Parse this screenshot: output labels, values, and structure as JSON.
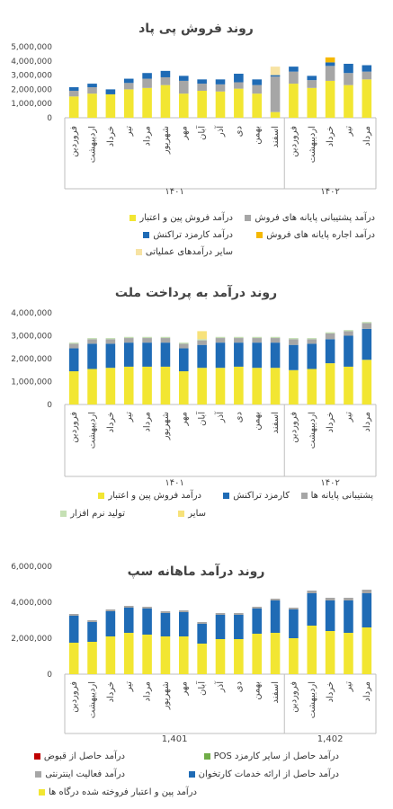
{
  "chart_data": [
    {
      "type": "bar",
      "title": "روند فروش پی پاد",
      "ylim": [
        0,
        5000000
      ],
      "ytick_labels": [
        "5,000,000",
        "4,000,000",
        "3,000,000",
        "2,000,000",
        "1,000,000",
        "0"
      ],
      "categories": [
        "فروردین",
        "اردیبهشت",
        "خرداد",
        "تیر",
        "مرداد",
        "شهریور",
        "مهر",
        "آبان",
        "آذر",
        "دی",
        "بهمن",
        "اسفند",
        "فروردین",
        "اردیبهشت",
        "خرداد",
        "تیر",
        "مرداد"
      ],
      "groups": [
        {
          "label": "۱۴۰۱",
          "count": 12
        },
        {
          "label": "۱۴۰۲",
          "count": 5
        }
      ],
      "series": [
        {
          "name": "درآمد فروش پین و اعتبار",
          "color": "#f2e632",
          "values": [
            1500000,
            1700000,
            1650000,
            2000000,
            2100000,
            2300000,
            1700000,
            1900000,
            1850000,
            2050000,
            1700000,
            400000,
            2400000,
            2100000,
            2600000,
            2300000,
            2700000
          ]
        },
        {
          "name": "درآمد پشتیبانی پایانه های فروش",
          "color": "#a6a6a6",
          "values": [
            400000,
            450000,
            0,
            450000,
            650000,
            550000,
            900000,
            500000,
            500000,
            450000,
            600000,
            2500000,
            850000,
            550000,
            1050000,
            850000,
            550000
          ]
        },
        {
          "name": "درآمد کارمزد تراکنش",
          "color": "#1f6bb5",
          "values": [
            250000,
            250000,
            350000,
            300000,
            400000,
            450000,
            350000,
            300000,
            350000,
            600000,
            400000,
            100000,
            350000,
            300000,
            250000,
            650000,
            450000
          ]
        },
        {
          "name": "درآمد اجاره پایانه های فروش",
          "color": "#f5b800",
          "values": [
            0,
            0,
            0,
            0,
            0,
            0,
            0,
            0,
            0,
            0,
            0,
            0,
            0,
            0,
            350000,
            0,
            0
          ]
        },
        {
          "name": "سایر درآمدهای عملیاتی",
          "color": "#f7e3a3",
          "values": [
            0,
            0,
            0,
            0,
            0,
            0,
            0,
            0,
            0,
            0,
            0,
            600000,
            0,
            0,
            0,
            0,
            0
          ]
        }
      ],
      "legend_position": "bottom"
    },
    {
      "type": "bar",
      "title": "روند درآمد به پرداخت ملت",
      "ylim": [
        0,
        4000000
      ],
      "ytick_labels": [
        "4,000,000",
        "3,000,000",
        "2,000,000",
        "1,000,000",
        "0"
      ],
      "categories": [
        "فروردین",
        "اردیبهشت",
        "خرداد",
        "تیر",
        "مرداد",
        "شهریور",
        "مهر",
        "آبان",
        "آذر",
        "دی",
        "بهمن",
        "اسفند",
        "فروردین",
        "اردیبهشت",
        "خرداد",
        "تیر",
        "مرداد"
      ],
      "groups": [
        {
          "label": "۱۴۰۱",
          "count": 12
        },
        {
          "label": "۱۴۰۲",
          "count": 5
        }
      ],
      "series": [
        {
          "name": "درآمد فروش پین و اعتبار",
          "color": "#f2e632",
          "values": [
            1450000,
            1550000,
            1600000,
            1650000,
            1650000,
            1650000,
            1450000,
            1600000,
            1600000,
            1650000,
            1600000,
            1600000,
            1500000,
            1550000,
            1800000,
            1650000,
            1950000
          ]
        },
        {
          "name": "کارمزد تراکنش",
          "color": "#1f6bb5",
          "values": [
            1000000,
            1100000,
            1050000,
            1050000,
            1050000,
            1050000,
            1000000,
            1000000,
            1100000,
            1050000,
            1100000,
            1100000,
            1100000,
            1100000,
            1050000,
            1350000,
            1350000
          ]
        },
        {
          "name": "پشتیبانی پایانه ها",
          "color": "#a6a6a6",
          "values": [
            200000,
            200000,
            200000,
            200000,
            200000,
            200000,
            200000,
            200000,
            200000,
            200000,
            200000,
            200000,
            250000,
            200000,
            250000,
            200000,
            250000
          ]
        },
        {
          "name": "تولید نرم افزار",
          "color": "#c5e0b4",
          "values": [
            50000,
            50000,
            50000,
            50000,
            50000,
            50000,
            50000,
            50000,
            50000,
            50000,
            50000,
            50000,
            50000,
            50000,
            50000,
            50000,
            50000
          ]
        },
        {
          "name": "سایر",
          "color": "#f7e27a",
          "values": [
            0,
            0,
            0,
            0,
            0,
            0,
            0,
            350000,
            0,
            0,
            0,
            0,
            0,
            0,
            0,
            0,
            0
          ]
        }
      ],
      "legend_position": "bottom"
    },
    {
      "type": "bar",
      "title": "روند درآمد ماهانه سپ",
      "ylim": [
        0,
        6000000
      ],
      "ytick_labels": [
        "6,000,000",
        "4,000,000",
        "2,000,000",
        "0"
      ],
      "categories": [
        "فروردین",
        "اردیبهشت",
        "خرداد",
        "تیر",
        "مرداد",
        "شهریور",
        "مهر",
        "آبان",
        "آذر",
        "دی",
        "بهمن",
        "اسفند",
        "فروردین",
        "اردیبهشت",
        "خرداد",
        "تیر",
        "مرداد"
      ],
      "groups": [
        {
          "label": "1,401",
          "count": 12
        },
        {
          "label": "1,402",
          "count": 5
        }
      ],
      "series": [
        {
          "name": "درآمد حاصل از قبوض",
          "color": "#c00000",
          "values": [
            0,
            0,
            0,
            0,
            0,
            0,
            0,
            0,
            0,
            0,
            0,
            0,
            0,
            0,
            0,
            0,
            0
          ]
        },
        {
          "name": "درآمد حاصل از سایر کارمزد POS",
          "color": "#70ad47",
          "values": [
            0,
            0,
            0,
            0,
            0,
            0,
            0,
            0,
            0,
            0,
            0,
            0,
            0,
            0,
            0,
            0,
            0
          ]
        },
        {
          "name": "درآمد فعالیت اینترنتی",
          "color": "#a6a6a6",
          "values": [
            100000,
            100000,
            100000,
            100000,
            100000,
            100000,
            100000,
            100000,
            100000,
            100000,
            100000,
            100000,
            100000,
            150000,
            150000,
            150000,
            200000
          ]
        },
        {
          "name": "درآمد حاصل از ارائه خدمات کارتخوان",
          "color": "#1f6bb5",
          "values": [
            1500000,
            1100000,
            1400000,
            1400000,
            1450000,
            1300000,
            1350000,
            1100000,
            1350000,
            1350000,
            1400000,
            1800000,
            1600000,
            1800000,
            1700000,
            1800000,
            1900000
          ]
        },
        {
          "name": "درآمد پین و اعتبار فروخته شده درگاه ها",
          "color": "#f2e632",
          "values": [
            1750000,
            1800000,
            2100000,
            2300000,
            2200000,
            2100000,
            2100000,
            1700000,
            1950000,
            1950000,
            2250000,
            2300000,
            2000000,
            2700000,
            2400000,
            2300000,
            2600000
          ]
        }
      ],
      "legend_position": "bottom"
    }
  ]
}
